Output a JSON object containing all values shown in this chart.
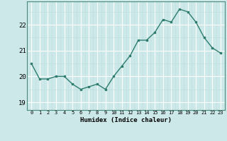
{
  "x": [
    0,
    1,
    2,
    3,
    4,
    5,
    6,
    7,
    8,
    9,
    10,
    11,
    12,
    13,
    14,
    15,
    16,
    17,
    18,
    19,
    20,
    21,
    22,
    23
  ],
  "y": [
    20.5,
    19.9,
    19.9,
    20.0,
    20.0,
    19.7,
    19.5,
    19.6,
    19.7,
    19.5,
    20.0,
    20.4,
    20.8,
    21.4,
    21.4,
    21.7,
    22.2,
    22.1,
    22.6,
    22.5,
    22.1,
    21.5,
    21.1,
    20.9
  ],
  "xlabel": "Humidex (Indice chaleur)",
  "line_color": "#2e7d6e",
  "bg_color": "#cce8e8",
  "grid_major_color": "#ffffff",
  "grid_minor_color": "#bbdddd",
  "yticks": [
    19,
    20,
    21,
    22
  ],
  "xtick_labels": [
    "0",
    "1",
    "2",
    "3",
    "4",
    "5",
    "6",
    "7",
    "8",
    "9",
    "10",
    "11",
    "12",
    "13",
    "14",
    "15",
    "16",
    "17",
    "18",
    "19",
    "20",
    "21",
    "22",
    "23"
  ],
  "ylim": [
    18.7,
    22.9
  ],
  "xlim": [
    -0.5,
    23.5
  ]
}
